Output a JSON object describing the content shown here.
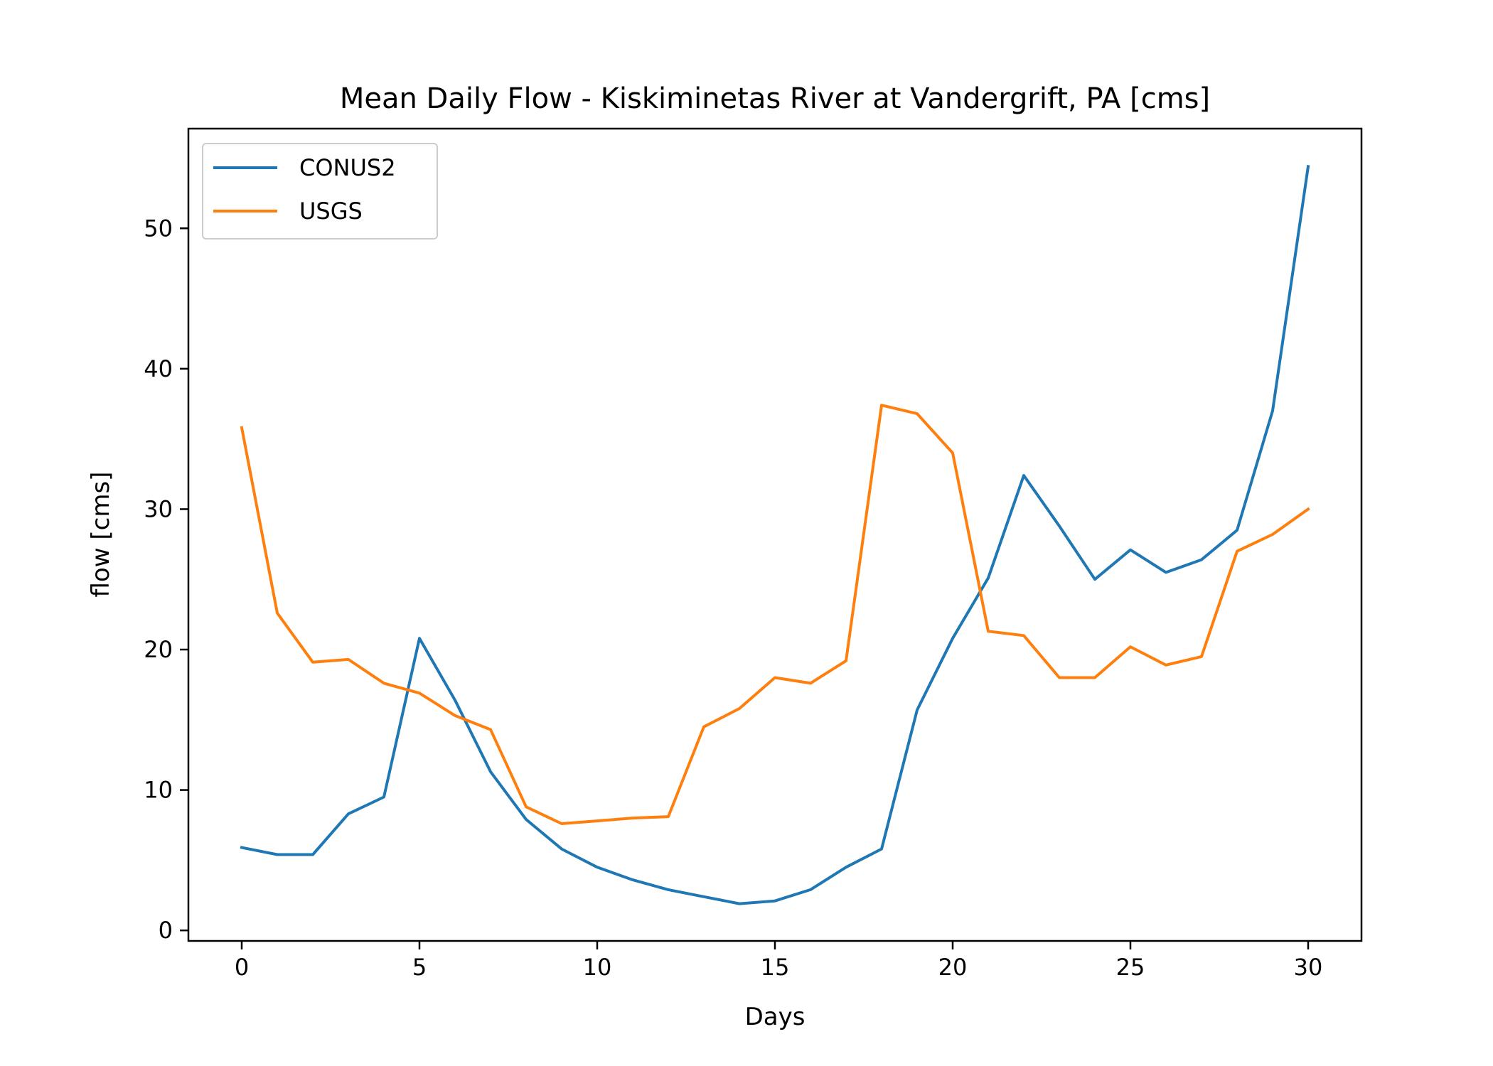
{
  "chart_data": {
    "type": "line",
    "title": "Mean Daily Flow - Kiskiminetas River at Vandergrift, PA [cms]",
    "xlabel": "Days",
    "ylabel": "flow [cms]",
    "xlim": [
      -1.5,
      31.5
    ],
    "ylim": [
      -0.75,
      57.1
    ],
    "xticks": [
      0,
      5,
      10,
      15,
      20,
      25,
      30
    ],
    "yticks": [
      0,
      10,
      20,
      30,
      40,
      50
    ],
    "x": [
      0,
      1,
      2,
      3,
      4,
      5,
      6,
      7,
      8,
      9,
      10,
      11,
      12,
      13,
      14,
      15,
      16,
      17,
      18,
      19,
      20,
      21,
      22,
      23,
      24,
      25,
      26,
      27,
      28,
      29,
      30
    ],
    "series": [
      {
        "name": "CONUS2",
        "color": "#1f77b4",
        "values": [
          5.9,
          5.4,
          5.4,
          8.3,
          9.5,
          20.8,
          16.4,
          11.3,
          7.9,
          5.8,
          4.5,
          3.6,
          2.9,
          2.4,
          1.9,
          2.1,
          2.9,
          4.5,
          5.8,
          15.7,
          20.8,
          25.1,
          32.4,
          28.8,
          25.0,
          27.1,
          25.5,
          26.4,
          28.5,
          37.0,
          54.4
        ]
      },
      {
        "name": "USGS",
        "color": "#ff7f0e",
        "values": [
          35.8,
          22.6,
          19.1,
          19.3,
          17.6,
          16.9,
          15.3,
          14.3,
          8.8,
          7.6,
          7.8,
          8.0,
          8.1,
          14.5,
          15.8,
          18.0,
          17.6,
          19.2,
          37.4,
          36.8,
          34.0,
          21.3,
          21.0,
          18.0,
          18.0,
          20.2,
          18.9,
          19.5,
          27.0,
          28.2,
          30.0
        ]
      }
    ],
    "legend": "top-left",
    "grid": false
  }
}
